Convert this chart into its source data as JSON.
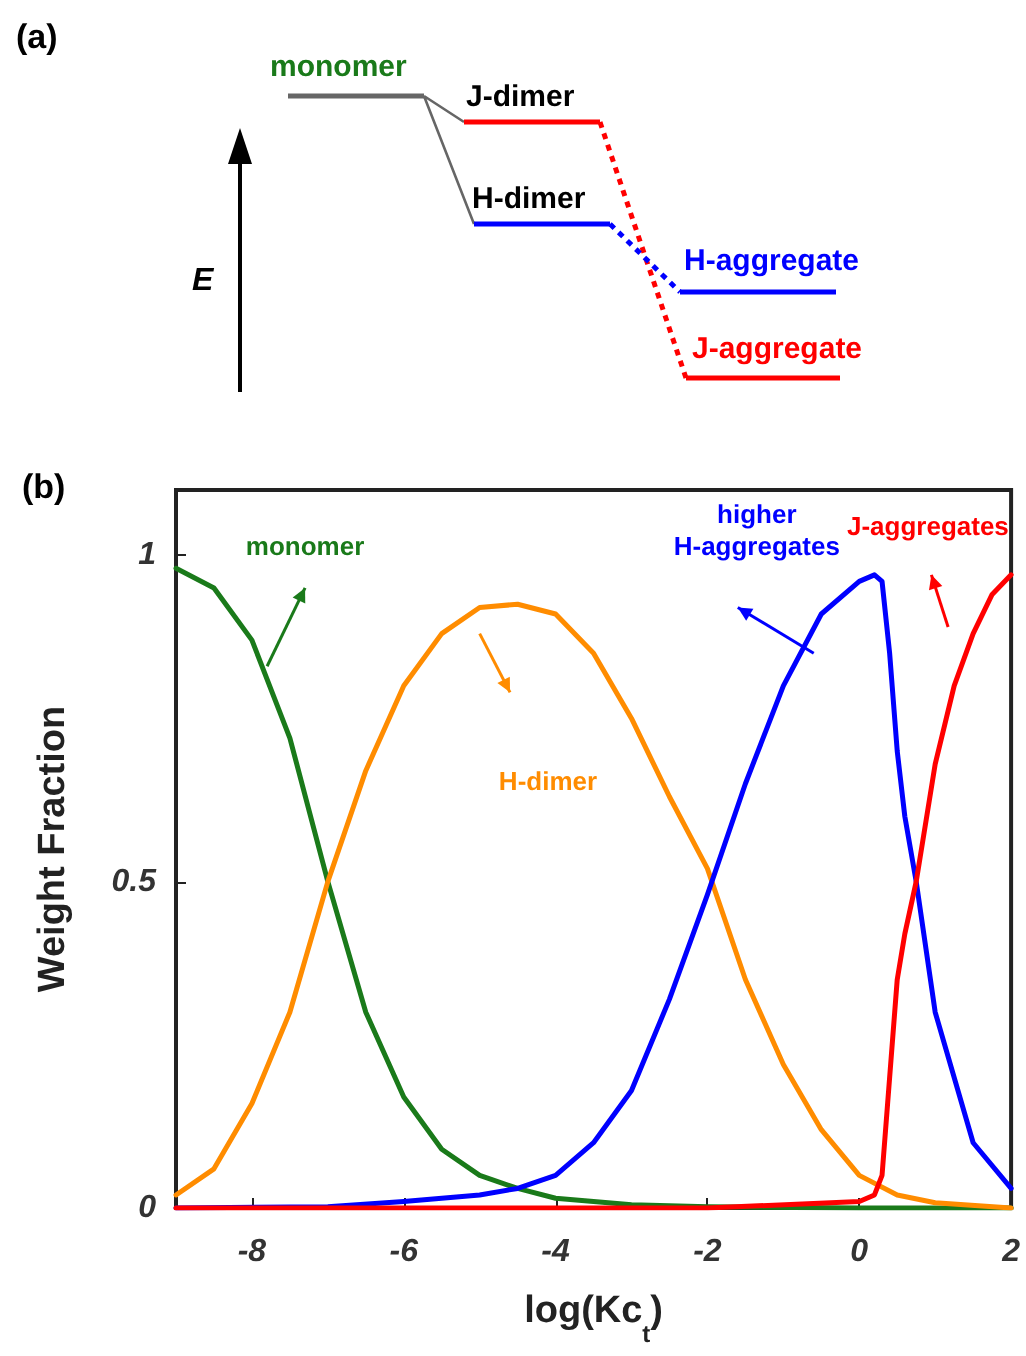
{
  "chart_data": [
    {
      "type": "other",
      "title": "(a)",
      "ylabel": "E",
      "annotations": [
        "monomer",
        "J-dimer",
        "H-dimer",
        "H-aggregate",
        "J-aggregate"
      ]
    },
    {
      "type": "line",
      "title": "(b)",
      "xlabel": "log(Kc$_{t}$)",
      "ylabel": "Weight Fraction",
      "xlim": [
        -9,
        2
      ],
      "xticks": [
        -8,
        -6,
        -4,
        -2,
        0,
        2
      ],
      "ylim": [
        0,
        1.1
      ],
      "yticks": [
        0,
        0.5,
        1
      ],
      "grid": false,
      "legend": false,
      "marker": "none",
      "line_style": "solid",
      "series": [
        {
          "name": "monomer",
          "color": "#1a7a1a",
          "x": [
            -9,
            -8.5,
            -8,
            -7.5,
            -7,
            -6.5,
            -6,
            -5.5,
            -5,
            -4.5,
            -4,
            -3,
            -2,
            0,
            2
          ],
          "values": [
            0.98,
            0.95,
            0.87,
            0.72,
            0.5,
            0.3,
            0.17,
            0.09,
            0.05,
            0.03,
            0.015,
            0.005,
            0.002,
            0,
            0
          ]
        },
        {
          "name": "H-dimer",
          "color": "#ff8c00",
          "x": [
            -9,
            -8.5,
            -8,
            -7.5,
            -7,
            -6.5,
            -6,
            -5.5,
            -5,
            -4.5,
            -4,
            -3.5,
            -3,
            -2.5,
            -2,
            -1.5,
            -1,
            -0.5,
            0,
            0.5,
            1,
            2
          ],
          "values": [
            0.02,
            0.06,
            0.16,
            0.3,
            0.5,
            0.67,
            0.8,
            0.88,
            0.92,
            0.925,
            0.91,
            0.85,
            0.75,
            0.63,
            0.52,
            0.35,
            0.22,
            0.12,
            0.05,
            0.02,
            0.008,
            0
          ]
        },
        {
          "name": "higher\nH-aggregates",
          "color": "#0000ff",
          "x": [
            -9,
            -7,
            -6,
            -5,
            -4.5,
            -4,
            -3.5,
            -3,
            -2.5,
            -2,
            -1.5,
            -1,
            -0.5,
            0,
            0.2,
            0.3,
            0.4,
            0.5,
            0.6,
            0.75,
            1,
            1.5,
            2
          ],
          "values": [
            0,
            0.002,
            0.01,
            0.02,
            0.03,
            0.05,
            0.1,
            0.18,
            0.32,
            0.48,
            0.65,
            0.8,
            0.91,
            0.96,
            0.97,
            0.96,
            0.85,
            0.7,
            0.6,
            0.5,
            0.3,
            0.1,
            0.03
          ]
        },
        {
          "name": "J-aggregates",
          "color": "#ff0000",
          "x": [
            -9,
            -2,
            0,
            0.2,
            0.3,
            0.4,
            0.5,
            0.6,
            0.75,
            1,
            1.25,
            1.5,
            1.75,
            2
          ],
          "values": [
            0,
            0,
            0.01,
            0.02,
            0.05,
            0.2,
            0.35,
            0.42,
            0.5,
            0.68,
            0.8,
            0.88,
            0.94,
            0.97
          ]
        }
      ]
    }
  ]
}
